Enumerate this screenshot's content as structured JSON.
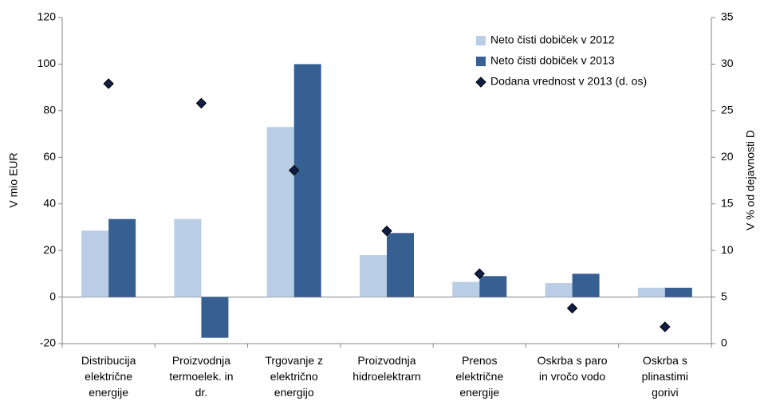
{
  "chart_data": {
    "type": "bar",
    "categories": [
      "Distribucija\nelektrične\nenergije",
      "Proizvodnja\ntermoelek. in\ndr.",
      "Trgovanje z\nelektrično\nenergijo",
      "Proizvodnja\nhidroelektrarn",
      "Prenos\nelektrične\nenergije",
      "Oskrba s paro\nin vročo vodo",
      "Oskrba s\nplinastimi\ngorivi"
    ],
    "series": [
      {
        "name": "Neto čisti dobiček v 2012",
        "type": "bar",
        "color": "#b9cde5",
        "values": [
          28.5,
          33.5,
          73,
          18,
          6.5,
          6,
          4
        ]
      },
      {
        "name": "Neto čisti dobiček v 2013",
        "type": "bar",
        "color": "#376092",
        "values": [
          33.5,
          -17.5,
          100,
          27.5,
          9,
          10,
          4
        ]
      },
      {
        "name": "Dodana vrednost v 2013 (d. os)",
        "type": "scatter",
        "marker": "diamond",
        "axis": "y2",
        "color": "#0f1f45",
        "values": [
          27.9,
          25.8,
          18.6,
          12.1,
          7.5,
          3.8,
          1.8
        ]
      }
    ],
    "ylabel": "V mio EUR",
    "y2label": "V % od dejavnosti D",
    "ylim": [
      -20,
      120
    ],
    "yticks": [
      -20,
      0,
      20,
      40,
      60,
      80,
      100,
      120
    ],
    "y2lim": [
      0,
      35
    ],
    "y2ticks": [
      0,
      5,
      10,
      15,
      20,
      25,
      30,
      35
    ],
    "grid": false,
    "legend": "upper right"
  }
}
